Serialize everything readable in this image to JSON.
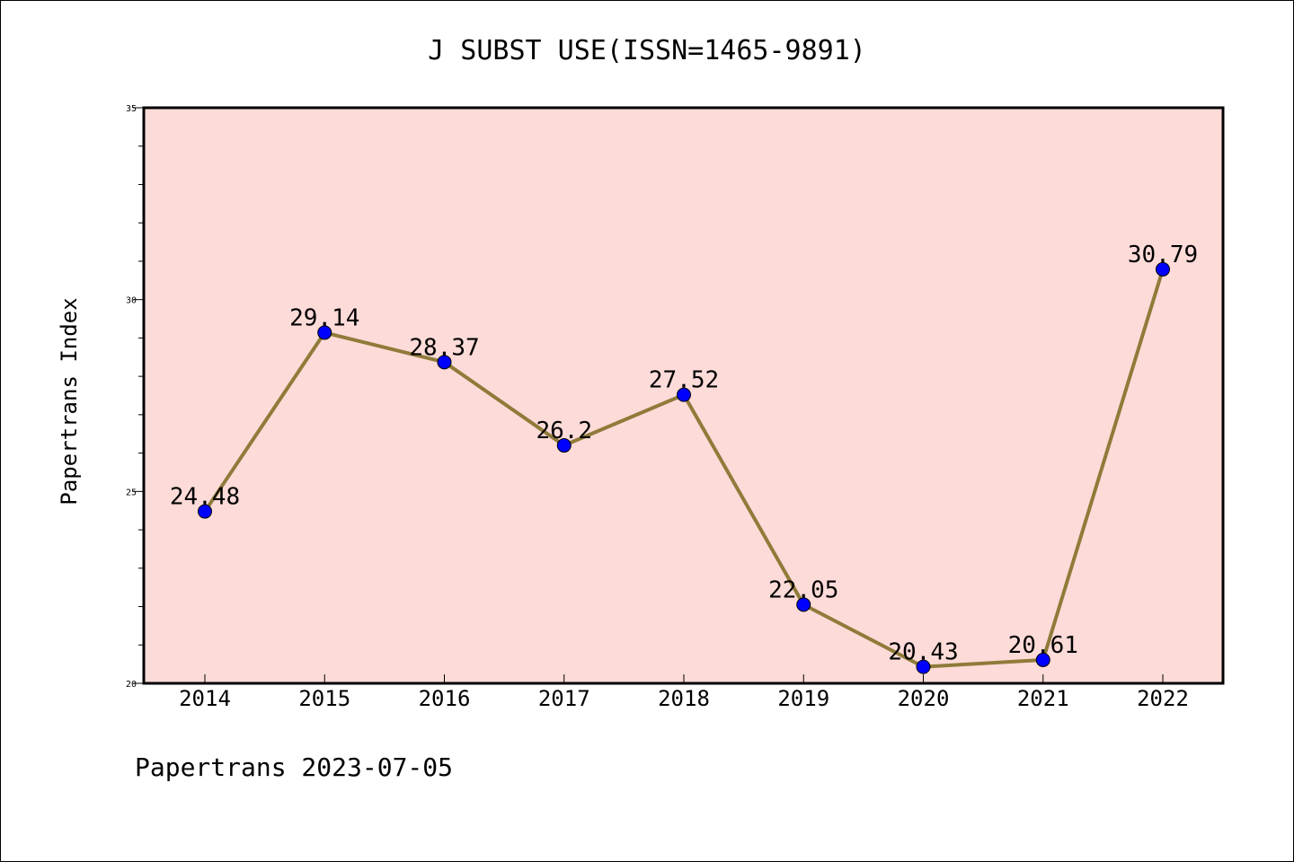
{
  "chart_data": {
    "type": "line",
    "title": "J SUBST USE(ISSN=1465-9891)",
    "ylabel": "Papertrans Index",
    "xlabel": "",
    "footer": "Papertrans 2023-07-05",
    "categories": [
      "2014",
      "2015",
      "2016",
      "2017",
      "2018",
      "2019",
      "2020",
      "2021",
      "2022"
    ],
    "values": [
      24.48,
      29.14,
      28.37,
      26.2,
      27.52,
      22.05,
      20.43,
      20.61,
      30.79
    ],
    "data_labels": [
      "24.48",
      "29.14",
      "28.37",
      "26.2",
      "27.52",
      "22.05",
      "20.43",
      "20.61",
      "30.79"
    ],
    "ylim": [
      20,
      35
    ],
    "yticks": [
      20,
      25,
      30,
      35
    ],
    "grid": false,
    "colors": {
      "plot_background": "#fddbd8",
      "line": "#8f7b3a",
      "marker": "#0000ff"
    }
  }
}
